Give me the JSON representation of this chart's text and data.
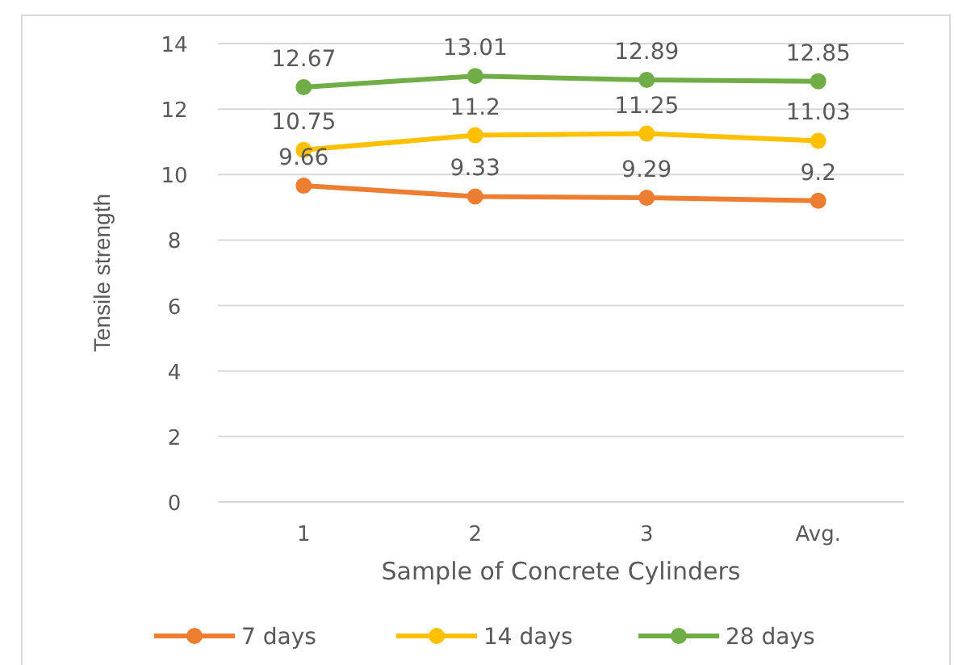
{
  "chart_data": {
    "type": "line",
    "xlabel": "Sample of Concrete Cylinders",
    "ylabel": "Tensile strength",
    "categories": [
      "1",
      "2",
      "3",
      "Avg."
    ],
    "series": [
      {
        "name": "7 days",
        "color": "#ed7d31",
        "values": [
          9.66,
          9.33,
          9.29,
          9.2
        ]
      },
      {
        "name": "14 days",
        "color": "#ffc000",
        "values": [
          10.75,
          11.2,
          11.25,
          11.03
        ]
      },
      {
        "name": "28 days",
        "color": "#70ad47",
        "values": [
          12.67,
          13.01,
          12.89,
          12.85
        ]
      }
    ],
    "ylim": [
      0,
      14
    ],
    "yticks": [
      0,
      2,
      4,
      6,
      8,
      10,
      12,
      14
    ],
    "grid": "y",
    "legend": "bottom",
    "marker": "circle",
    "line_style": "solid",
    "data_labels": true
  }
}
